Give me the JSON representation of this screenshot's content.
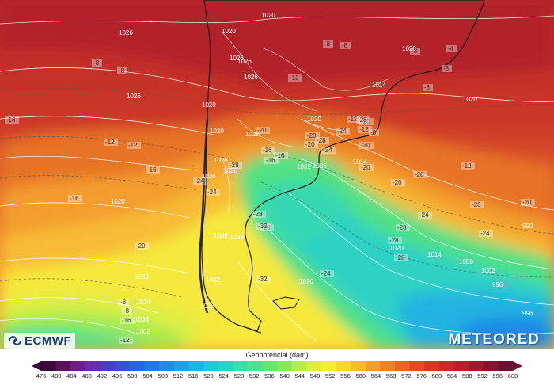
{
  "providers": {
    "left": "ECMWF",
    "right": "METEORED"
  },
  "legend": {
    "title": "Geopotencial (dam)",
    "ticks": [
      "476",
      "480",
      "484",
      "488",
      "492",
      "496",
      "500",
      "504",
      "508",
      "512",
      "516",
      "520",
      "524",
      "528",
      "532",
      "536",
      "540",
      "544",
      "548",
      "552",
      "556",
      "560",
      "564",
      "568",
      "572",
      "576",
      "580",
      "584",
      "588",
      "592",
      "596",
      "600"
    ],
    "colors": [
      "#3a0a3a",
      "#5a0f60",
      "#6f1d86",
      "#6a2da8",
      "#4b3ec0",
      "#3552cf",
      "#2a66db",
      "#2277e2",
      "#1f8be6",
      "#1f9fe7",
      "#22b3e2",
      "#26c4d7",
      "#2fd1c4",
      "#3bdba8",
      "#4ee08c",
      "#66e470",
      "#88e85a",
      "#b3ec4d",
      "#dcee45",
      "#f6ea3e",
      "#f9d439",
      "#f7ba33",
      "#f39d2d",
      "#ee8128",
      "#e76624",
      "#de4d22",
      "#d23a24",
      "#c52d27",
      "#b4232a",
      "#9c1b2b",
      "#821630",
      "#6a1233"
    ]
  },
  "map_labels": {
    "isobars": [
      "1020",
      "1026",
      "1020",
      "1026",
      "1026",
      "1026",
      "1020",
      "1020",
      "1014",
      "1020",
      "1026",
      "1020",
      "1026",
      "1026",
      "1026",
      "1020",
      "1032",
      "1026",
      "1038",
      "1026",
      "1020",
      "1014",
      "1020",
      "1038",
      "1032",
      "1026",
      "1020",
      "1014",
      "1008",
      "1002",
      "996",
      "1020",
      "1014",
      "1008",
      "1002",
      "996",
      "990",
      "1020"
    ],
    "isotherms": [
      "-8",
      "-8",
      "-8",
      "-8",
      "-8",
      "-12",
      "-12",
      "-12",
      "-16",
      "-16",
      "-16",
      "-20",
      "-20",
      "-20",
      "-20",
      "-20",
      "-20",
      "-24",
      "-24",
      "-24",
      "-24",
      "-28",
      "-28",
      "-28",
      "-28",
      "-28",
      "-28",
      "-32",
      "-32",
      "-28",
      "-24",
      "-24",
      "-20",
      "-20",
      "-20",
      "-20",
      "-16",
      "-16",
      "-16",
      "-12",
      "-12",
      "-8",
      "-8",
      "-4",
      "-8",
      "-12",
      "-8",
      "-8",
      "-12",
      "-16",
      "-24",
      "-20",
      "-28"
    ]
  }
}
